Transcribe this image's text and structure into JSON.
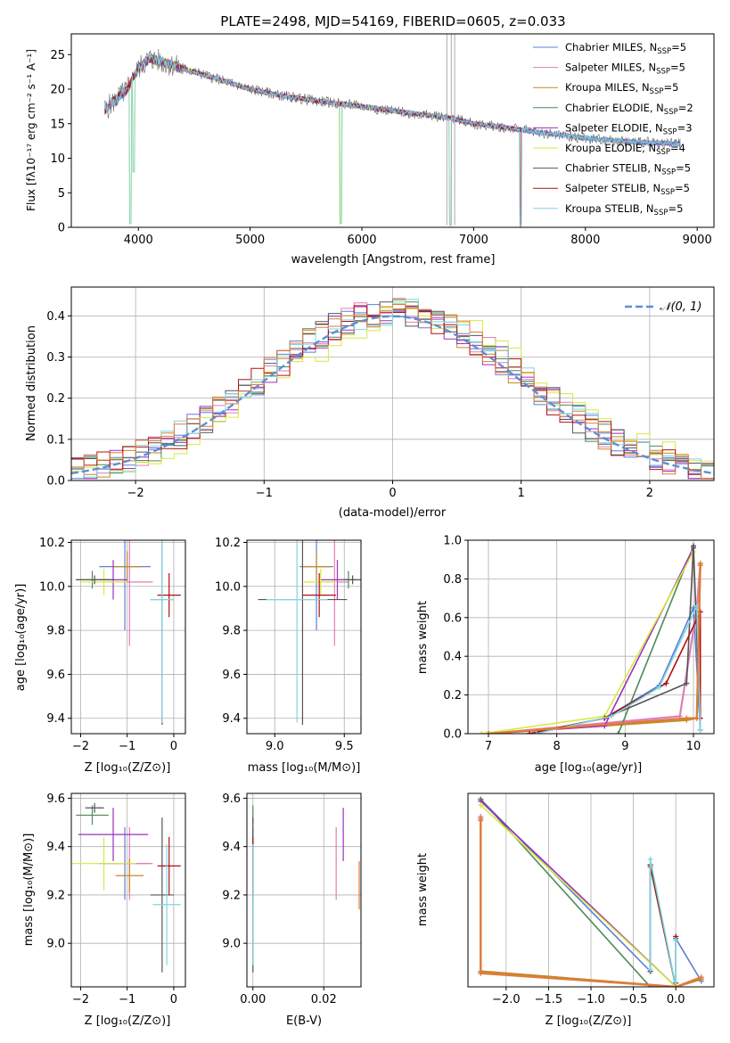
{
  "colors": {
    "chabrier_miles": "#5b7fd6",
    "salpeter_miles": "#e07fb6",
    "kroupa_miles": "#c48a25",
    "chabrier_elodie": "#4e8a56",
    "salpeter_elodie": "#9a2fc0",
    "kroupa_elodie": "#d6ea3c",
    "chabrier_stelib": "#555555",
    "salpeter_stelib": "#b01010",
    "kroupa_stelib": "#7fd6e0",
    "orange_extra": "#e07a3c",
    "grid": "#b0b0b0",
    "normal_curve": "#5b8fd6"
  },
  "chart_data": [
    {
      "id": "spectrum",
      "type": "line",
      "title": "PLATE=2498, MJD=54169, FIBERID=0605, z=0.033",
      "xlabel": "wavelength [Angstrom, rest frame]",
      "ylabel": "Flux [fλ10⁻¹⁷ erg cm⁻² s⁻¹ A⁻¹]",
      "xlim": [
        3400,
        9150
      ],
      "ylim": [
        0,
        28
      ],
      "xticks": [
        4000,
        5000,
        6000,
        7000,
        8000,
        9000
      ],
      "yticks": [
        0,
        5,
        10,
        15,
        20,
        25
      ],
      "grid": false,
      "legend_position": "top-right",
      "legend": [
        {
          "key": "chabrier_miles",
          "label": "Chabrier MILES, N",
          "sub": "SSP",
          "tail": "=5"
        },
        {
          "key": "salpeter_miles",
          "label": "Salpeter MILES, N",
          "sub": "SSP",
          "tail": "=5"
        },
        {
          "key": "kroupa_miles",
          "label": "Kroupa MILES, N",
          "sub": "SSP",
          "tail": "=5"
        },
        {
          "key": "chabrier_elodie",
          "label": "Chabrier ELODIE, N",
          "sub": "SSP",
          "tail": "=2"
        },
        {
          "key": "salpeter_elodie",
          "label": "Salpeter ELODIE, N",
          "sub": "SSP",
          "tail": "=3"
        },
        {
          "key": "kroupa_elodie",
          "label": "Kroupa ELODIE, N",
          "sub": "SSP",
          "tail": "=4"
        },
        {
          "key": "chabrier_stelib",
          "label": "Chabrier STELIB, N",
          "sub": "SSP",
          "tail": "=5"
        },
        {
          "key": "salpeter_stelib",
          "label": "Salpeter STELIB, N",
          "sub": "SSP",
          "tail": "=5"
        },
        {
          "key": "kroupa_stelib",
          "label": "Kroupa STELIB, N",
          "sub": "SSP",
          "tail": "=5"
        }
      ],
      "continuum": {
        "x": [
          3700,
          3900,
          4000,
          4100,
          4300,
          4500,
          4800,
          5000,
          5300,
          5600,
          6000,
          6300,
          6600,
          6800,
          7000,
          7300,
          7600,
          8000,
          8400,
          8800
        ],
        "y": [
          17,
          20,
          23,
          24.5,
          23.5,
          22.5,
          21,
          20,
          19,
          18.3,
          17.5,
          16.8,
          16.2,
          15.8,
          15,
          14.4,
          13.7,
          12.9,
          12.4,
          12.1
        ]
      },
      "features": [
        {
          "x": 3930,
          "y": 0.5
        },
        {
          "x": 3960,
          "y": 8
        },
        {
          "x": 5810,
          "y": 0.5
        },
        {
          "x": 6790,
          "y": 0.3
        },
        {
          "x": 7420,
          "y": 0.3
        }
      ],
      "model_ranges": [
        {
          "key": "kroupa_elodie",
          "xmin": 3900,
          "xmax": 6800
        },
        {
          "key": "salpeter_stelib",
          "xmin": 3700,
          "xmax": 7420
        },
        {
          "key": "kroupa_stelib",
          "xmin": 3700,
          "xmax": 8850
        }
      ]
    },
    {
      "id": "residuals",
      "type": "line",
      "xlabel": "(data-model)/error",
      "ylabel": "Normed distribution",
      "xlim": [
        -2.5,
        2.5
      ],
      "ylim": [
        0,
        0.47
      ],
      "xticks": [
        -2,
        -1,
        0,
        1,
        2
      ],
      "yticks": [
        0.0,
        0.1,
        0.2,
        0.3,
        0.4
      ],
      "grid": true,
      "legend_position": "top-right",
      "legend_label": "𝒩(0, 1)",
      "bin_width": 0.1,
      "histograms": [
        {
          "key": "chabrier_miles",
          "seed": 3
        },
        {
          "key": "salpeter_miles",
          "seed": 7
        },
        {
          "key": "kroupa_miles",
          "seed": 11
        },
        {
          "key": "chabrier_elodie",
          "seed": 13
        },
        {
          "key": "salpeter_elodie",
          "seed": 17
        },
        {
          "key": "kroupa_elodie",
          "seed": 19,
          "shift": -0.15
        },
        {
          "key": "chabrier_stelib",
          "seed": 23
        },
        {
          "key": "salpeter_stelib",
          "seed": 29
        },
        {
          "key": "kroupa_stelib",
          "seed": 31
        },
        {
          "key": "orange_extra",
          "seed": 37
        }
      ]
    },
    {
      "id": "age_vs_z",
      "type": "scatter",
      "xlabel": "Z [log₁₀(Z/Z⊙)]",
      "ylabel": "age  [log₁₀(age/yr)]",
      "xlim": [
        -2.2,
        0.25
      ],
      "ylim": [
        9.33,
        10.21
      ],
      "xticks": [
        -2,
        -1,
        0
      ],
      "yticks": [
        9.4,
        9.6,
        9.8,
        10.0,
        10.2
      ],
      "grid": true,
      "points": [
        {
          "key": "chabrier_miles",
          "x": -1.05,
          "y": 10.09,
          "xerr": 0.55,
          "yerr": 0.29
        },
        {
          "key": "salpeter_miles",
          "x": -0.95,
          "y": 10.02,
          "xerr": 0.5,
          "yerr": 0.29
        },
        {
          "key": "kroupa_miles",
          "x": -1.0,
          "y": 10.09,
          "xerr": 0.3,
          "yerr": 0.07
        },
        {
          "key": "chabrier_elodie",
          "x": -1.75,
          "y": 10.03,
          "xerr": 0.35,
          "yerr": 0.04
        },
        {
          "key": "salpeter_elodie",
          "x": -1.3,
          "y": 10.03,
          "xerr": 0.3,
          "yerr": 0.09
        },
        {
          "key": "kroupa_elodie",
          "x": -1.5,
          "y": 10.02,
          "xerr": 0.5,
          "yerr": 0.06
        },
        {
          "key": "chabrier_stelib",
          "x": -0.25,
          "y": 9.94,
          "xerr": 0.25,
          "yerr": 0.57
        },
        {
          "key": "salpeter_stelib",
          "x": -0.1,
          "y": 9.96,
          "xerr": 0.25,
          "yerr": 0.1
        },
        {
          "key": "kroupa_stelib",
          "x": -0.25,
          "y": 9.94,
          "xerr": 0.25,
          "yerr": 0.56
        },
        {
          "key": "chabrier_stelib",
          "x": -1.7,
          "y": 10.03,
          "xerr": 0.4,
          "yerr": 0.02
        }
      ]
    },
    {
      "id": "age_vs_mass",
      "type": "scatter",
      "xlabel": "mass [log₁₀(M/M⊙)]",
      "ylabel": "",
      "xlim": [
        8.8,
        9.62
      ],
      "ylim": [
        9.33,
        10.21
      ],
      "xticks": [
        9.0,
        9.5
      ],
      "yticks": [
        9.4,
        9.6,
        9.8,
        10.0,
        10.2
      ],
      "grid": true,
      "points": [
        {
          "key": "chabrier_miles",
          "x": 9.3,
          "y": 10.09,
          "xerr": 0.12,
          "yerr": 0.29
        },
        {
          "key": "salpeter_miles",
          "x": 9.43,
          "y": 10.02,
          "xerr": 0.1,
          "yerr": 0.29
        },
        {
          "key": "kroupa_miles",
          "x": 9.3,
          "y": 10.09,
          "xerr": 0.1,
          "yerr": 0.07
        },
        {
          "key": "chabrier_elodie",
          "x": 9.53,
          "y": 10.03,
          "xerr": 0.06,
          "yerr": 0.04
        },
        {
          "key": "salpeter_elodie",
          "x": 9.45,
          "y": 10.03,
          "xerr": 0.12,
          "yerr": 0.09
        },
        {
          "key": "kroupa_elodie",
          "x": 9.33,
          "y": 10.02,
          "xerr": 0.12,
          "yerr": 0.06
        },
        {
          "key": "chabrier_stelib",
          "x": 9.2,
          "y": 9.94,
          "xerr": 0.32,
          "yerr": 0.57
        },
        {
          "key": "salpeter_stelib",
          "x": 9.32,
          "y": 9.96,
          "xerr": 0.12,
          "yerr": 0.1
        },
        {
          "key": "kroupa_stelib",
          "x": 9.16,
          "y": 9.94,
          "xerr": 0.22,
          "yerr": 0.56
        },
        {
          "key": "chabrier_stelib",
          "x": 9.56,
          "y": 10.03,
          "xerr": 0.06,
          "yerr": 0.02
        }
      ]
    },
    {
      "id": "weight_vs_age",
      "type": "line",
      "xlabel": "age  [log₁₀(age/yr)]",
      "ylabel": "mass weight",
      "xlim": [
        6.7,
        10.3
      ],
      "ylim": [
        0,
        1.0
      ],
      "xticks": [
        7,
        8,
        9,
        10
      ],
      "yticks": [
        0.0,
        0.2,
        0.4,
        0.6,
        0.8,
        1.0
      ],
      "grid": true,
      "series": [
        {
          "key": "chabrier_miles",
          "x": [
            7.6,
            8.7,
            9.5,
            10.0,
            10.1
          ],
          "y": [
            0.0,
            0.08,
            0.25,
            0.65,
            0.02
          ]
        },
        {
          "key": "salpeter_miles",
          "x": [
            7.0,
            9.8,
            10.05,
            10.1
          ],
          "y": [
            0.0,
            0.09,
            0.65,
            0.88
          ]
        },
        {
          "key": "kroupa_miles",
          "x": [
            7.0,
            9.9,
            10.05,
            10.1
          ],
          "y": [
            0.0,
            0.07,
            0.08,
            0.88
          ]
        },
        {
          "key": "chabrier_elodie",
          "x": [
            8.9,
            10.0
          ],
          "y": [
            0.0,
            0.97
          ]
        },
        {
          "key": "salpeter_elodie",
          "x": [
            7.0,
            8.7,
            10.0
          ],
          "y": [
            0.0,
            0.04,
            0.96
          ]
        },
        {
          "key": "kroupa_elodie",
          "x": [
            6.9,
            8.7,
            10.0
          ],
          "y": [
            0.0,
            0.09,
            0.94
          ]
        },
        {
          "key": "chabrier_stelib",
          "x": [
            7.6,
            8.7,
            9.9,
            10.0,
            10.1
          ],
          "y": [
            0.0,
            0.08,
            0.26,
            0.97,
            0.02
          ]
        },
        {
          "key": "salpeter_stelib",
          "x": [
            7.6,
            8.7,
            9.6,
            10.1,
            10.1
          ],
          "y": [
            0.0,
            0.08,
            0.26,
            0.63,
            0.08
          ]
        },
        {
          "key": "kroupa_stelib",
          "x": [
            7.7,
            8.8,
            9.5,
            10.05,
            10.1
          ],
          "y": [
            0.0,
            0.09,
            0.24,
            0.66,
            0.02
          ]
        },
        {
          "key": "orange_extra",
          "x": [
            7.0,
            9.9,
            10.05,
            10.1
          ],
          "y": [
            0.0,
            0.08,
            0.08,
            0.87
          ]
        }
      ]
    },
    {
      "id": "mass_vs_z",
      "type": "scatter",
      "xlabel": "Z [log₁₀(Z/Z⊙)]",
      "ylabel": "mass [log₁₀(M/M⊙)]",
      "xlim": [
        -2.2,
        0.25
      ],
      "ylim": [
        8.82,
        9.62
      ],
      "xticks": [
        -2,
        -1,
        0
      ],
      "yticks": [
        9.0,
        9.2,
        9.4,
        9.6
      ],
      "grid": true,
      "points": [
        {
          "key": "chabrier_miles",
          "x": -1.05,
          "y": 9.33,
          "xerr": 0.55,
          "yerr": 0.15
        },
        {
          "key": "salpeter_miles",
          "x": -0.95,
          "y": 9.33,
          "xerr": 0.5,
          "yerr": 0.15
        },
        {
          "key": "kroupa_miles",
          "x": -0.95,
          "y": 9.28,
          "xerr": 0.3,
          "yerr": 0.07
        },
        {
          "key": "chabrier_elodie",
          "x": -1.75,
          "y": 9.53,
          "xerr": 0.35,
          "yerr": 0.04
        },
        {
          "key": "salpeter_elodie",
          "x": -1.3,
          "y": 9.45,
          "xerr": 0.75,
          "yerr": 0.11
        },
        {
          "key": "kroupa_elodie",
          "x": -1.5,
          "y": 9.33,
          "xerr": 0.7,
          "yerr": 0.11
        },
        {
          "key": "chabrier_stelib",
          "x": -0.25,
          "y": 9.2,
          "xerr": 0.25,
          "yerr": 0.32
        },
        {
          "key": "salpeter_stelib",
          "x": -0.1,
          "y": 9.32,
          "xerr": 0.25,
          "yerr": 0.12
        },
        {
          "key": "kroupa_stelib",
          "x": -0.15,
          "y": 9.16,
          "xerr": 0.3,
          "yerr": 0.25
        },
        {
          "key": "chabrier_stelib",
          "x": -1.7,
          "y": 9.56,
          "xerr": 0.2,
          "yerr": 0.02
        }
      ]
    },
    {
      "id": "mass_vs_ebv",
      "type": "scatter",
      "xlabel": "E(B-V)",
      "ylabel": "",
      "xlim": [
        -0.0017,
        0.0305
      ],
      "ylim": [
        8.82,
        9.62
      ],
      "xticks": [
        0.0,
        0.02
      ],
      "yticks": [
        9.0,
        9.2,
        9.4,
        9.6
      ],
      "grid": true,
      "points": [
        {
          "key": "chabrier_miles",
          "x": 0.0,
          "y": 9.33,
          "xerr": 0.0,
          "yerr": 0.15
        },
        {
          "key": "salpeter_miles",
          "x": 0.0235,
          "y": 9.33,
          "xerr": 0.0,
          "yerr": 0.15
        },
        {
          "key": "kroupa_miles",
          "x": 0.0,
          "y": 9.28,
          "xerr": 0.0,
          "yerr": 0.07
        },
        {
          "key": "chabrier_elodie",
          "x": 0.0,
          "y": 9.53,
          "xerr": 0.0,
          "yerr": 0.04
        },
        {
          "key": "salpeter_elodie",
          "x": 0.0255,
          "y": 9.45,
          "xerr": 0.0,
          "yerr": 0.11
        },
        {
          "key": "kroupa_elodie",
          "x": 0.0,
          "y": 9.33,
          "xerr": 0.0,
          "yerr": 0.11
        },
        {
          "key": "chabrier_stelib",
          "x": 0.0,
          "y": 9.2,
          "xerr": 0.0,
          "yerr": 0.32
        },
        {
          "key": "salpeter_stelib",
          "x": 0.0,
          "y": 9.32,
          "xerr": 0.0,
          "yerr": 0.12
        },
        {
          "key": "kroupa_stelib",
          "x": 0.0,
          "y": 9.16,
          "xerr": 0.0,
          "yerr": 0.25
        },
        {
          "key": "orange_extra",
          "x": 0.03,
          "y": 9.24,
          "xerr": 0.0,
          "yerr": 0.1
        }
      ]
    },
    {
      "id": "weight_vs_z",
      "type": "line",
      "xlabel": "Z [log₁₀(Z/Z⊙)]",
      "ylabel": "mass weight",
      "xlim": [
        -2.45,
        0.45
      ],
      "ylim": [
        0,
        1.0
      ],
      "xticks": [
        -2.0,
        -1.5,
        -1.0,
        -0.5,
        0.0
      ],
      "grid": true,
      "series": [
        {
          "key": "chabrier_miles",
          "x": [
            -2.3,
            -0.3,
            -0.3,
            0.0,
            0.0,
            0.3
          ],
          "y": [
            0.97,
            0.08,
            0.63,
            0.0,
            0.25,
            0.03
          ]
        },
        {
          "key": "salpeter_miles",
          "x": [
            -2.3,
            -2.3,
            0.0,
            0.3
          ],
          "y": [
            0.88,
            0.08,
            0.0,
            0.04
          ]
        },
        {
          "key": "kroupa_miles",
          "x": [
            -2.3,
            -2.3,
            0.0,
            0.3
          ],
          "y": [
            0.87,
            0.08,
            0.0,
            0.04
          ]
        },
        {
          "key": "chabrier_elodie",
          "x": [
            -2.3,
            -0.3
          ],
          "y": [
            0.97,
            0.0
          ]
        },
        {
          "key": "salpeter_elodie",
          "x": [
            -2.3,
            0.0
          ],
          "y": [
            0.96,
            0.0
          ]
        },
        {
          "key": "kroupa_elodie",
          "x": [
            -2.3,
            0.0
          ],
          "y": [
            0.94,
            0.0
          ]
        },
        {
          "key": "chabrier_stelib",
          "x": [
            -0.3,
            -0.3,
            0.0,
            0.0
          ],
          "y": [
            0.08,
            0.62,
            0.0,
            0.02
          ]
        },
        {
          "key": "salpeter_stelib",
          "x": [
            -0.3,
            0.0,
            0.0
          ],
          "y": [
            0.63,
            0.0,
            0.26
          ]
        },
        {
          "key": "kroupa_stelib",
          "x": [
            -0.3,
            -0.3,
            0.0,
            0.0
          ],
          "y": [
            0.09,
            0.66,
            0.0,
            0.24
          ]
        },
        {
          "key": "orange_extra",
          "x": [
            -2.3,
            -2.3,
            0.0,
            0.3
          ],
          "y": [
            0.86,
            0.07,
            0.0,
            0.05
          ]
        }
      ]
    }
  ]
}
